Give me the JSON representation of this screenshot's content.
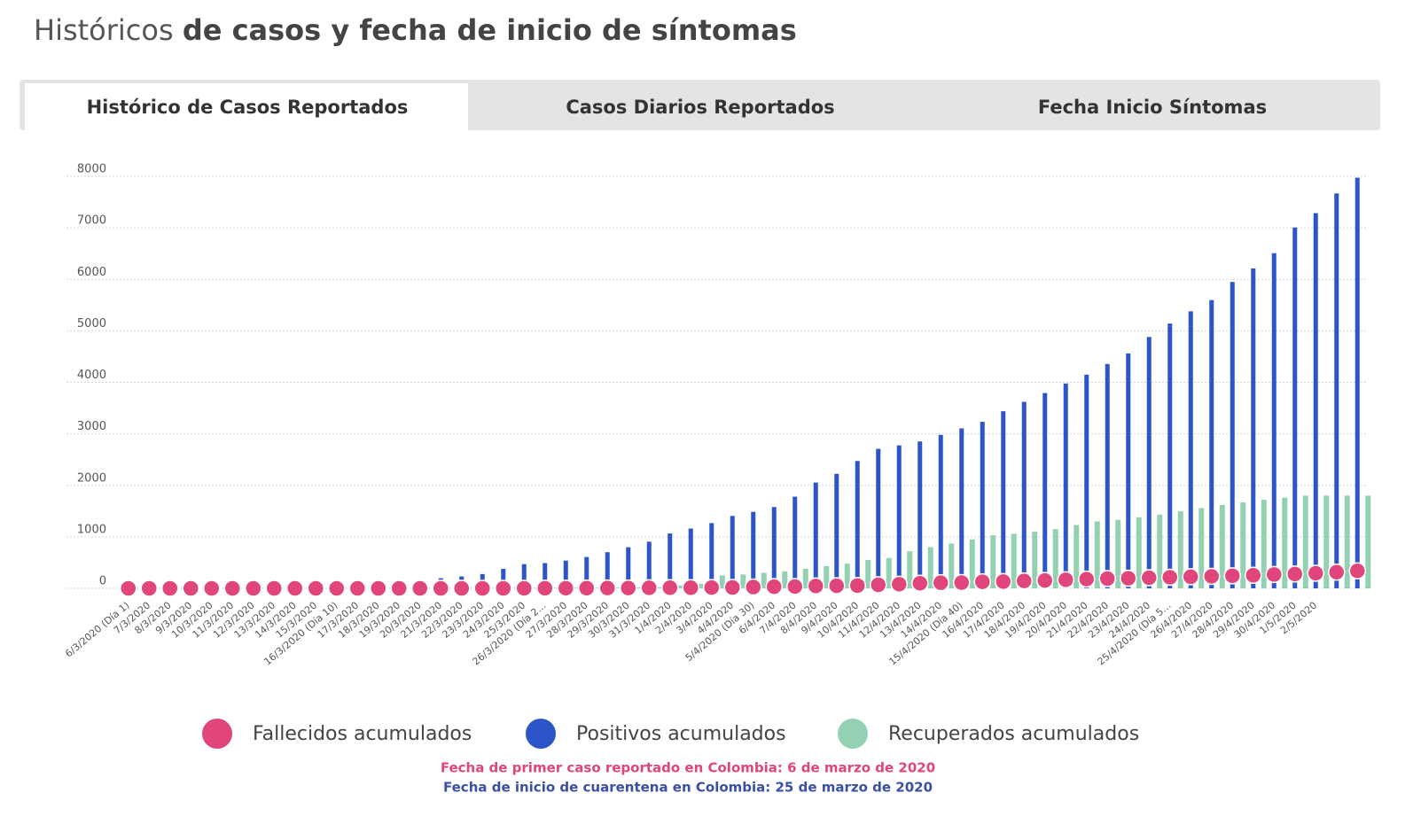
{
  "header": {
    "title_light": "Históricos",
    "title_bold": "de casos y fecha de inicio de síntomas"
  },
  "tabs": [
    "Histórico de Casos Reportados",
    "Casos Diarios Reportados",
    "Fecha Inicio Síntomas"
  ],
  "chart_data": {
    "type": "bar",
    "categories": [
      "6/3/2020 (Día 1)",
      "7/3/2020",
      "8/3/2020",
      "9/3/2020",
      "10/3/2020",
      "11/3/2020",
      "12/3/2020",
      "13/3/2020",
      "14/3/2020",
      "15/3/2020",
      "16/3/2020 (Día 10)",
      "17/3/2020",
      "18/3/2020",
      "19/3/2020",
      "20/3/2020",
      "21/3/2020",
      "22/3/2020",
      "23/3/2020",
      "24/3/2020",
      "25/3/2020",
      "26/3/2020 (Día 2…",
      "27/3/2020",
      "28/3/2020",
      "29/3/2020",
      "30/3/2020",
      "31/3/2020",
      "1/4/2020",
      "2/4/2020",
      "3/4/2020",
      "4/4/2020",
      "5/4/2020 (Día 30)",
      "6/4/2020",
      "7/4/2020",
      "8/4/2020",
      "9/4/2020",
      "10/4/2020",
      "11/4/2020",
      "12/4/2020",
      "13/4/2020",
      "14/4/2020",
      "15/4/2020 (Día 40)",
      "16/4/2020",
      "17/4/2020",
      "18/4/2020",
      "19/4/2020",
      "20/4/2020",
      "21/4/2020",
      "22/4/2020",
      "23/4/2020",
      "24/4/2020",
      "25/4/2020 (Día 5…",
      "26/4/2020",
      "27/4/2020",
      "28/4/2020",
      "29/4/2020",
      "30/4/2020",
      "1/5/2020",
      "2/5/2020",
      null,
      null
    ],
    "series": [
      {
        "name": "Fallecidos acumulados",
        "color": "#e0457b",
        "values": [
          0,
          0,
          0,
          0,
          0,
          0,
          0,
          0,
          0,
          0,
          0,
          0,
          0,
          0,
          0,
          0,
          0,
          0,
          0,
          1,
          2,
          3,
          4,
          6,
          6,
          10,
          12,
          13,
          16,
          17,
          25,
          32,
          35,
          46,
          50,
          54,
          69,
          80,
          100,
          109,
          112,
          127,
          131,
          144,
          153,
          166,
          179,
          189,
          196,
          206,
          215,
          225,
          233,
          244,
          253,
          269,
          278,
          293,
          314,
          340
        ]
      },
      {
        "name": "Positivos acumulados",
        "color": "#2c55c9",
        "values": [
          1,
          1,
          1,
          3,
          3,
          9,
          9,
          16,
          24,
          45,
          57,
          75,
          102,
          108,
          145,
          196,
          231,
          277,
          378,
          470,
          491,
          539,
          608,
          702,
          798,
          906,
          1065,
          1161,
          1267,
          1406,
          1485,
          1579,
          1780,
          2054,
          2223,
          2473,
          2709,
          2776,
          2852,
          2979,
          3105,
          3233,
          3439,
          3621,
          3792,
          3977,
          4149,
          4356,
          4561,
          4881,
          5142,
          5379,
          5597,
          5949,
          6211,
          6507,
          7006,
          7285,
          7668,
          7973
        ]
      },
      {
        "name": "Recuperados acumulados",
        "color": "#93d1b2",
        "values": [
          0,
          0,
          0,
          0,
          0,
          0,
          0,
          0,
          0,
          0,
          1,
          1,
          1,
          1,
          1,
          3,
          3,
          4,
          6,
          8,
          10,
          10,
          10,
          13,
          16,
          17,
          55,
          88,
          250,
          270,
          300,
          330,
          380,
          430,
          480,
          550,
          590,
          720,
          800,
          870,
          950,
          1030,
          1060,
          1100,
          1150,
          1230,
          1300,
          1330,
          1380,
          1430,
          1500,
          1560,
          1620,
          1670,
          1720,
          1760,
          1800,
          1800,
          1800,
          1800
        ]
      }
    ],
    "ylim": [
      0,
      8000
    ],
    "yticks": [
      0,
      1000,
      2000,
      3000,
      4000,
      5000,
      6000,
      7000,
      8000
    ],
    "grid": true,
    "annotations": [
      "Fecha de primer caso reportado en Colombia: 6 de marzo de 2020",
      "Fecha de inicio de cuarentena en Colombia: 25 de marzo de 2020"
    ]
  }
}
